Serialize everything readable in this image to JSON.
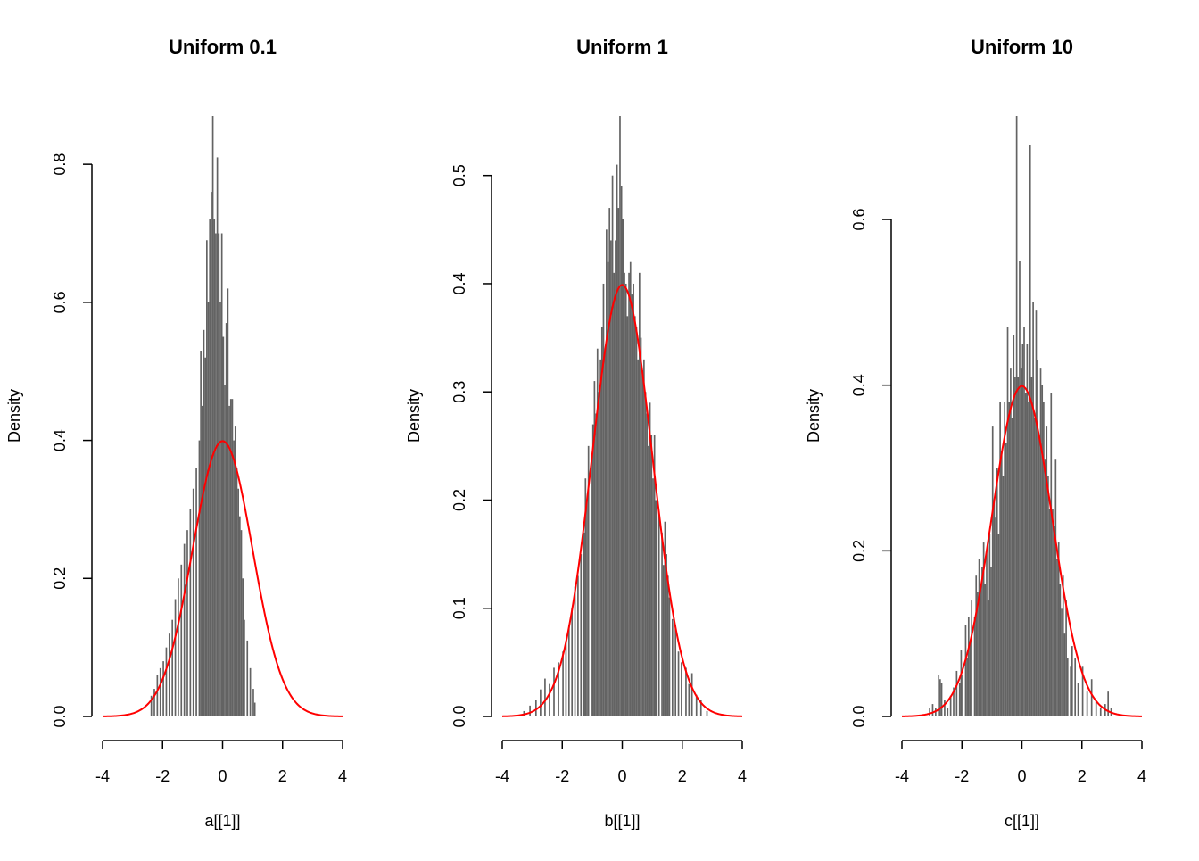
{
  "chart_data": [
    {
      "type": "histogram",
      "title": "Uniform 0.1",
      "xlabel": "a[[1]]",
      "ylabel": "Density",
      "xlim": [
        -4,
        4
      ],
      "ylim": [
        0,
        0.87
      ],
      "xticks": [
        "-4",
        "-2",
        "0",
        "2",
        "4"
      ],
      "yticks": [
        "0.0",
        "0.2",
        "0.4",
        "0.6",
        "0.8"
      ],
      "bar_color": "#636363",
      "curve_color": "#ff0000",
      "curve": "normal density, mean 0, sd 1",
      "bin_width": 0.05,
      "bins": [
        [
          -2.4,
          0.03
        ],
        [
          -2.3,
          0.04
        ],
        [
          -2.2,
          0.06
        ],
        [
          -2.1,
          0.07
        ],
        [
          -2.0,
          0.08
        ],
        [
          -1.9,
          0.1
        ],
        [
          -1.8,
          0.12
        ],
        [
          -1.7,
          0.14
        ],
        [
          -1.6,
          0.17
        ],
        [
          -1.5,
          0.2
        ],
        [
          -1.4,
          0.22
        ],
        [
          -1.3,
          0.25
        ],
        [
          -1.2,
          0.27
        ],
        [
          -1.1,
          0.3
        ],
        [
          -1.0,
          0.33
        ],
        [
          -0.9,
          0.36
        ],
        [
          -0.8,
          0.4
        ],
        [
          -0.75,
          0.53
        ],
        [
          -0.7,
          0.45
        ],
        [
          -0.65,
          0.56
        ],
        [
          -0.6,
          0.52
        ],
        [
          -0.55,
          0.69
        ],
        [
          -0.5,
          0.6
        ],
        [
          -0.45,
          0.72
        ],
        [
          -0.4,
          0.76
        ],
        [
          -0.35,
          0.87
        ],
        [
          -0.3,
          0.72
        ],
        [
          -0.25,
          0.7
        ],
        [
          -0.2,
          0.81
        ],
        [
          -0.15,
          0.7
        ],
        [
          -0.1,
          0.6
        ],
        [
          -0.05,
          0.7
        ],
        [
          0.0,
          0.55
        ],
        [
          0.05,
          0.48
        ],
        [
          0.1,
          0.57
        ],
        [
          0.15,
          0.62
        ],
        [
          0.2,
          0.45
        ],
        [
          0.25,
          0.46
        ],
        [
          0.3,
          0.46
        ],
        [
          0.35,
          0.4
        ],
        [
          0.4,
          0.42
        ],
        [
          0.45,
          0.36
        ],
        [
          0.5,
          0.33
        ],
        [
          0.55,
          0.29
        ],
        [
          0.6,
          0.27
        ],
        [
          0.65,
          0.2
        ],
        [
          0.7,
          0.14
        ],
        [
          0.8,
          0.11
        ],
        [
          0.9,
          0.07
        ],
        [
          1.0,
          0.04
        ],
        [
          1.05,
          0.02
        ]
      ]
    },
    {
      "type": "histogram",
      "title": "Uniform 1",
      "xlabel": "b[[1]]",
      "ylabel": "Density",
      "xlim": [
        -4,
        4
      ],
      "ylim": [
        0,
        0.555
      ],
      "xticks": [
        "-4",
        "-2",
        "0",
        "2",
        "4"
      ],
      "yticks": [
        "0.0",
        "0.1",
        "0.2",
        "0.3",
        "0.4",
        "0.5"
      ],
      "bar_color": "#636363",
      "curve_color": "#ff0000",
      "curve": "normal density, mean 0, sd 1",
      "bin_width": 0.05,
      "bins": [
        [
          -3.3,
          0.005
        ],
        [
          -3.1,
          0.01
        ],
        [
          -2.9,
          0.015
        ],
        [
          -2.75,
          0.025
        ],
        [
          -2.6,
          0.035
        ],
        [
          -2.45,
          0.03
        ],
        [
          -2.3,
          0.045
        ],
        [
          -2.15,
          0.05
        ],
        [
          -2.0,
          0.06
        ],
        [
          -1.9,
          0.07
        ],
        [
          -1.8,
          0.085
        ],
        [
          -1.7,
          0.1
        ],
        [
          -1.6,
          0.12
        ],
        [
          -1.5,
          0.13
        ],
        [
          -1.4,
          0.15
        ],
        [
          -1.3,
          0.17
        ],
        [
          -1.25,
          0.22
        ],
        [
          -1.2,
          0.2
        ],
        [
          -1.15,
          0.25
        ],
        [
          -1.05,
          0.24
        ],
        [
          -1.0,
          0.27
        ],
        [
          -0.95,
          0.31
        ],
        [
          -0.9,
          0.28
        ],
        [
          -0.85,
          0.34
        ],
        [
          -0.8,
          0.3
        ],
        [
          -0.75,
          0.33
        ],
        [
          -0.7,
          0.36
        ],
        [
          -0.65,
          0.4
        ],
        [
          -0.6,
          0.34
        ],
        [
          -0.55,
          0.45
        ],
        [
          -0.5,
          0.42
        ],
        [
          -0.45,
          0.47
        ],
        [
          -0.4,
          0.44
        ],
        [
          -0.35,
          0.5
        ],
        [
          -0.3,
          0.41
        ],
        [
          -0.25,
          0.44
        ],
        [
          -0.2,
          0.51
        ],
        [
          -0.15,
          0.47
        ],
        [
          -0.1,
          0.555
        ],
        [
          -0.05,
          0.49
        ],
        [
          0.0,
          0.46
        ],
        [
          0.05,
          0.41
        ],
        [
          0.1,
          0.4
        ],
        [
          0.15,
          0.37
        ],
        [
          0.2,
          0.41
        ],
        [
          0.25,
          0.42
        ],
        [
          0.3,
          0.39
        ],
        [
          0.35,
          0.4
        ],
        [
          0.4,
          0.37
        ],
        [
          0.45,
          0.36
        ],
        [
          0.5,
          0.33
        ],
        [
          0.55,
          0.41
        ],
        [
          0.6,
          0.35
        ],
        [
          0.65,
          0.32
        ],
        [
          0.7,
          0.33
        ],
        [
          0.75,
          0.3
        ],
        [
          0.8,
          0.28
        ],
        [
          0.85,
          0.25
        ],
        [
          0.9,
          0.29
        ],
        [
          0.95,
          0.26
        ],
        [
          1.0,
          0.22
        ],
        [
          1.05,
          0.26
        ],
        [
          1.1,
          0.2
        ],
        [
          1.2,
          0.19
        ],
        [
          1.3,
          0.17
        ],
        [
          1.35,
          0.14
        ],
        [
          1.4,
          0.18
        ],
        [
          1.45,
          0.15
        ],
        [
          1.5,
          0.13
        ],
        [
          1.55,
          0.11
        ],
        [
          1.65,
          0.09
        ],
        [
          1.75,
          0.085
        ],
        [
          1.85,
          0.06
        ],
        [
          1.95,
          0.05
        ],
        [
          2.1,
          0.045
        ],
        [
          2.2,
          0.03
        ],
        [
          2.3,
          0.04
        ],
        [
          2.45,
          0.02
        ],
        [
          2.6,
          0.015
        ],
        [
          2.8,
          0.005
        ]
      ]
    },
    {
      "type": "histogram",
      "title": "Uniform 10",
      "xlabel": "c[[1]]",
      "ylabel": "Density",
      "xlim": [
        -4,
        4
      ],
      "ylim": [
        0,
        0.725
      ],
      "xticks": [
        "-4",
        "-2",
        "0",
        "2",
        "4"
      ],
      "yticks": [
        "0.0",
        "0.2",
        "0.4",
        "0.6"
      ],
      "bar_color": "#636363",
      "curve_color": "#ff0000",
      "curve": "normal density, mean 0, sd 1",
      "bin_width": 0.05,
      "bins": [
        [
          -3.1,
          0.01
        ],
        [
          -3.0,
          0.015
        ],
        [
          -2.9,
          0.01
        ],
        [
          -2.8,
          0.05
        ],
        [
          -2.75,
          0.045
        ],
        [
          -2.7,
          0.04
        ],
        [
          -2.6,
          0.02
        ],
        [
          -2.5,
          0.01
        ],
        [
          -2.4,
          0.025
        ],
        [
          -2.3,
          0.035
        ],
        [
          -2.2,
          0.055
        ],
        [
          -2.1,
          0.04
        ],
        [
          -2.05,
          0.08
        ],
        [
          -2.0,
          0.05
        ],
        [
          -1.9,
          0.11
        ],
        [
          -1.85,
          0.07
        ],
        [
          -1.8,
          0.12
        ],
        [
          -1.75,
          0.09
        ],
        [
          -1.7,
          0.14
        ],
        [
          -1.6,
          0.12
        ],
        [
          -1.55,
          0.17
        ],
        [
          -1.5,
          0.15
        ],
        [
          -1.45,
          0.19
        ],
        [
          -1.4,
          0.16
        ],
        [
          -1.35,
          0.18
        ],
        [
          -1.3,
          0.21
        ],
        [
          -1.25,
          0.16
        ],
        [
          -1.2,
          0.2
        ],
        [
          -1.15,
          0.14
        ],
        [
          -1.1,
          0.22
        ],
        [
          -1.05,
          0.18
        ],
        [
          -1.0,
          0.35
        ],
        [
          -0.95,
          0.26
        ],
        [
          -0.9,
          0.24
        ],
        [
          -0.85,
          0.3
        ],
        [
          -0.8,
          0.22
        ],
        [
          -0.75,
          0.38
        ],
        [
          -0.7,
          0.32
        ],
        [
          -0.65,
          0.29
        ],
        [
          -0.6,
          0.38
        ],
        [
          -0.55,
          0.33
        ],
        [
          -0.5,
          0.47
        ],
        [
          -0.45,
          0.38
        ],
        [
          -0.4,
          0.42
        ],
        [
          -0.35,
          0.36
        ],
        [
          -0.3,
          0.46
        ],
        [
          -0.25,
          0.41
        ],
        [
          -0.2,
          0.725
        ],
        [
          -0.15,
          0.41
        ],
        [
          -0.1,
          0.55
        ],
        [
          -0.05,
          0.42
        ],
        [
          0.0,
          0.45
        ],
        [
          0.05,
          0.47
        ],
        [
          0.1,
          0.39
        ],
        [
          0.15,
          0.45
        ],
        [
          0.2,
          0.38
        ],
        [
          0.25,
          0.69
        ],
        [
          0.3,
          0.41
        ],
        [
          0.35,
          0.5
        ],
        [
          0.4,
          0.36
        ],
        [
          0.45,
          0.49
        ],
        [
          0.5,
          0.43
        ],
        [
          0.55,
          0.34
        ],
        [
          0.6,
          0.42
        ],
        [
          0.65,
          0.4
        ],
        [
          0.7,
          0.38
        ],
        [
          0.75,
          0.31
        ],
        [
          0.8,
          0.35
        ],
        [
          0.85,
          0.29
        ],
        [
          0.9,
          0.25
        ],
        [
          0.95,
          0.39
        ],
        [
          1.0,
          0.25
        ],
        [
          1.05,
          0.23
        ],
        [
          1.1,
          0.31
        ],
        [
          1.15,
          0.19
        ],
        [
          1.2,
          0.21
        ],
        [
          1.25,
          0.16
        ],
        [
          1.3,
          0.13
        ],
        [
          1.35,
          0.17
        ],
        [
          1.4,
          0.1
        ],
        [
          1.45,
          0.14
        ],
        [
          1.5,
          0.07
        ],
        [
          1.6,
          0.06
        ],
        [
          1.65,
          0.085
        ],
        [
          1.75,
          0.07
        ],
        [
          1.85,
          0.04
        ],
        [
          2.0,
          0.06
        ],
        [
          2.15,
          0.03
        ],
        [
          2.3,
          0.045
        ],
        [
          2.45,
          0.02
        ],
        [
          2.6,
          0.01
        ],
        [
          2.75,
          0.015
        ],
        [
          2.85,
          0.03
        ],
        [
          2.95,
          0.01
        ]
      ]
    }
  ]
}
